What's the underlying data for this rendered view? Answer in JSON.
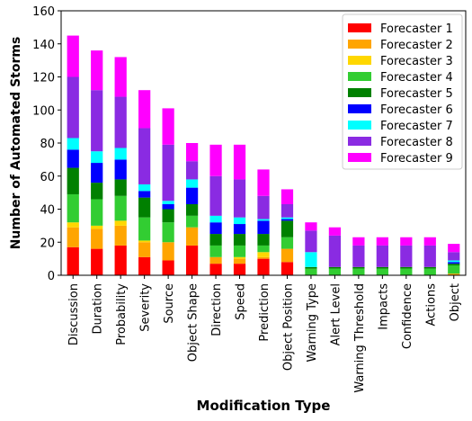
{
  "chart_data": {
    "type": "stacked_bar",
    "x_label": "Modification Type",
    "y_label": "Number of Automated Storms",
    "categories": [
      "Discussion",
      "Duration",
      "Probability",
      "Severity",
      "Source",
      "Object Shape",
      "Direction",
      "Speed",
      "Prediction",
      "Object Position",
      "Warning Type",
      "Alert Level",
      "Warning Threshold",
      "Impacts",
      "Confidence",
      "Actions",
      "Object"
    ],
    "series": [
      {
        "name": "Forecaster 1",
        "color": "#ff0000",
        "values": [
          17,
          16,
          18,
          11,
          9,
          18,
          7,
          7,
          10,
          8,
          0,
          0,
          0,
          0,
          0,
          0,
          0
        ]
      },
      {
        "name": "Forecaster 2",
        "color": "#ffa500",
        "values": [
          12,
          12,
          12,
          9,
          11,
          11,
          4,
          3,
          1,
          8,
          0,
          0,
          0,
          0,
          0,
          0,
          1
        ]
      },
      {
        "name": "Forecaster 3",
        "color": "#ffd700",
        "values": [
          3,
          2,
          3,
          1,
          0,
          0,
          0,
          1,
          3,
          0,
          0,
          0,
          0,
          0,
          0,
          0,
          0
        ]
      },
      {
        "name": "Forecaster 4",
        "color": "#32cd32",
        "values": [
          17,
          16,
          15,
          14,
          12,
          7,
          7,
          7,
          4,
          7,
          4,
          4,
          4,
          4,
          4,
          4,
          5
        ]
      },
      {
        "name": "Forecaster 5",
        "color": "#008000",
        "values": [
          16,
          10,
          10,
          12,
          8,
          7,
          7,
          7,
          7,
          10,
          1,
          1,
          1,
          1,
          1,
          1,
          1
        ]
      },
      {
        "name": "Forecaster 6",
        "color": "#0000ff",
        "values": [
          11,
          12,
          12,
          4,
          3,
          10,
          7,
          6,
          8,
          1,
          0,
          0,
          0,
          0,
          0,
          0,
          1
        ]
      },
      {
        "name": "Forecaster 7",
        "color": "#00ffff",
        "values": [
          7,
          7,
          7,
          4,
          2,
          5,
          4,
          4,
          1,
          1,
          9,
          0,
          0,
          0,
          0,
          0,
          1
        ]
      },
      {
        "name": "Forecaster 8",
        "color": "#8a2be2",
        "values": [
          37,
          37,
          31,
          34,
          34,
          11,
          24,
          23,
          14,
          8,
          13,
          19,
          13,
          13,
          13,
          13,
          5
        ]
      },
      {
        "name": "Forecaster 9",
        "color": "#ff00ff",
        "values": [
          25,
          24,
          24,
          23,
          22,
          11,
          19,
          21,
          16,
          9,
          5,
          5,
          5,
          5,
          5,
          5,
          5
        ]
      }
    ],
    "ylim": [
      0,
      160
    ],
    "yticks": [
      0,
      20,
      40,
      60,
      80,
      100,
      120,
      140,
      160
    ],
    "grid": false,
    "legend": "upper right"
  }
}
